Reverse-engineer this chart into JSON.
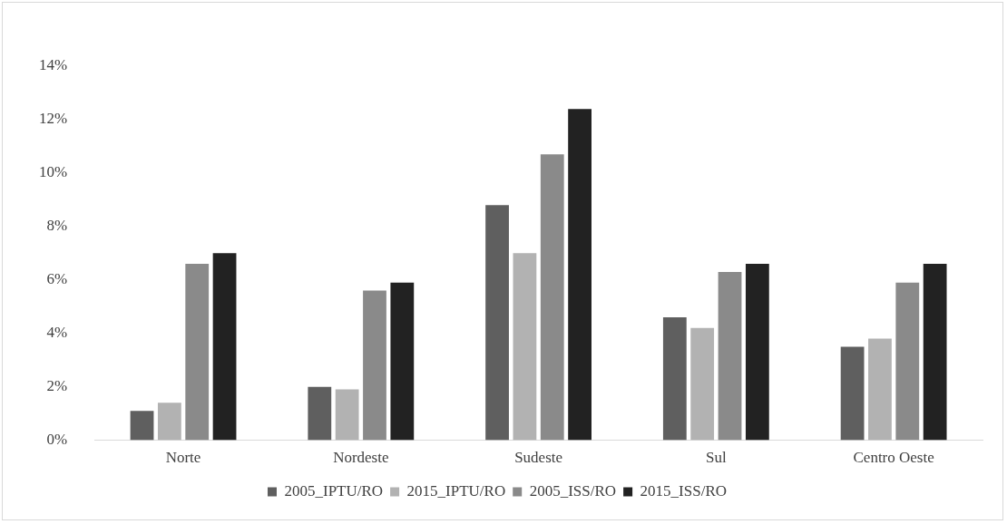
{
  "chart_data": {
    "type": "bar",
    "categories": [
      "Norte",
      "Nordeste",
      "Sudeste",
      "Sul",
      "Centro Oeste"
    ],
    "series": [
      {
        "name": "2005_IPTU/RO",
        "color": "#5f5f5f",
        "values": [
          1.1,
          2.0,
          8.8,
          4.6,
          3.5
        ]
      },
      {
        "name": "2015_IPTU/RO",
        "color": "#b2b2b2",
        "values": [
          1.4,
          1.9,
          7.0,
          4.2,
          3.8
        ]
      },
      {
        "name": "2005_ISS/RO",
        "color": "#8a8a8a",
        "values": [
          6.6,
          5.6,
          10.7,
          6.3,
          5.9
        ]
      },
      {
        "name": "2015_ISS/RO",
        "color": "#222222",
        "values": [
          7.0,
          5.9,
          12.4,
          6.6,
          6.6
        ]
      }
    ],
    "ylim": [
      0,
      14
    ],
    "yticks": [
      {
        "value": 0,
        "label": "0%"
      },
      {
        "value": 2,
        "label": "2%"
      },
      {
        "value": 4,
        "label": "4%"
      },
      {
        "value": 6,
        "label": "6%"
      },
      {
        "value": 8,
        "label": "8%"
      },
      {
        "value": 10,
        "label": "10%"
      },
      {
        "value": 12,
        "label": "12%"
      },
      {
        "value": 14,
        "label": "14%"
      }
    ],
    "grid": false,
    "legend": "bottom"
  }
}
